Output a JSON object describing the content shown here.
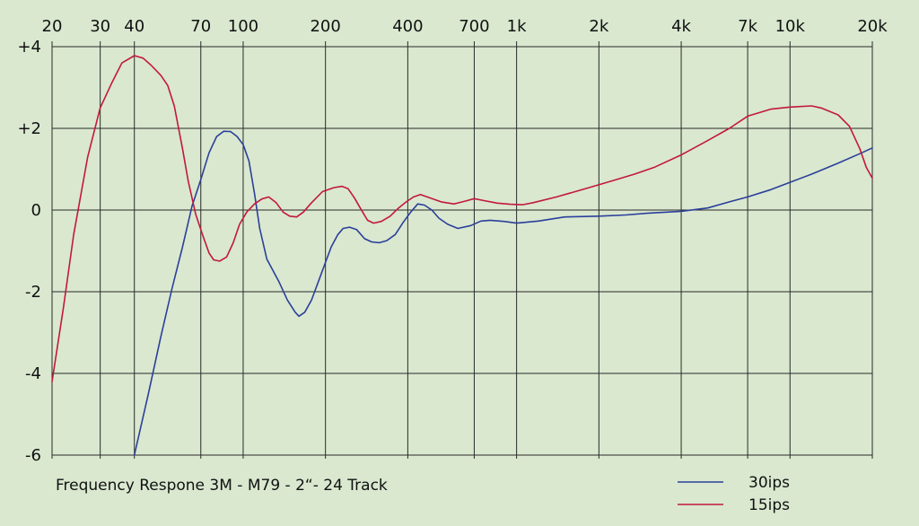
{
  "chart_data": {
    "type": "line",
    "title": "Frequency Respone 3M - M79 - 2“- 24 Track",
    "xlabel": "",
    "ylabel": "",
    "xscale": "log",
    "xlim": [
      20,
      20000
    ],
    "ylim": [
      -6,
      4
    ],
    "grid": true,
    "legend_position": "bottom-right",
    "background_color": "#d9e8cf",
    "grid_color": "#2a2a2a",
    "x_ticks": [
      {
        "value": 20,
        "label": "20"
      },
      {
        "value": 30,
        "label": "30"
      },
      {
        "value": 40,
        "label": "40"
      },
      {
        "value": 70,
        "label": "70"
      },
      {
        "value": 100,
        "label": "100"
      },
      {
        "value": 200,
        "label": "200"
      },
      {
        "value": 400,
        "label": "400"
      },
      {
        "value": 700,
        "label": "700"
      },
      {
        "value": 1000,
        "label": "1k"
      },
      {
        "value": 2000,
        "label": "2k"
      },
      {
        "value": 4000,
        "label": "4k"
      },
      {
        "value": 7000,
        "label": "7k"
      },
      {
        "value": 10000,
        "label": "10k"
      },
      {
        "value": 20000,
        "label": "20k"
      }
    ],
    "y_ticks": [
      {
        "value": 4,
        "label": "+4"
      },
      {
        "value": 2,
        "label": "+2"
      },
      {
        "value": 0,
        "label": "0"
      },
      {
        "value": -2,
        "label": "-2"
      },
      {
        "value": -4,
        "label": "-4"
      },
      {
        "value": -6,
        "label": "-6"
      }
    ],
    "series": [
      {
        "name": "30ips",
        "color": "#2b3f9a",
        "points": [
          [
            40,
            -6.0
          ],
          [
            45,
            -4.5
          ],
          [
            50,
            -3.1
          ],
          [
            55,
            -1.9
          ],
          [
            60,
            -0.9
          ],
          [
            65,
            0.1
          ],
          [
            70,
            0.75
          ],
          [
            75,
            1.4
          ],
          [
            80,
            1.8
          ],
          [
            85,
            1.93
          ],
          [
            90,
            1.92
          ],
          [
            95,
            1.8
          ],
          [
            100,
            1.6
          ],
          [
            105,
            1.2
          ],
          [
            110,
            0.4
          ],
          [
            115,
            -0.45
          ],
          [
            122,
            -1.2
          ],
          [
            135,
            -1.75
          ],
          [
            145,
            -2.2
          ],
          [
            155,
            -2.5
          ],
          [
            160,
            -2.6
          ],
          [
            168,
            -2.5
          ],
          [
            178,
            -2.2
          ],
          [
            192,
            -1.6
          ],
          [
            210,
            -0.9
          ],
          [
            222,
            -0.6
          ],
          [
            232,
            -0.45
          ],
          [
            245,
            -0.42
          ],
          [
            260,
            -0.48
          ],
          [
            278,
            -0.7
          ],
          [
            295,
            -0.78
          ],
          [
            315,
            -0.8
          ],
          [
            335,
            -0.75
          ],
          [
            360,
            -0.6
          ],
          [
            385,
            -0.3
          ],
          [
            410,
            -0.05
          ],
          [
            435,
            0.15
          ],
          [
            460,
            0.12
          ],
          [
            490,
            0.0
          ],
          [
            520,
            -0.2
          ],
          [
            560,
            -0.35
          ],
          [
            610,
            -0.45
          ],
          [
            680,
            -0.38
          ],
          [
            740,
            -0.27
          ],
          [
            800,
            -0.25
          ],
          [
            900,
            -0.28
          ],
          [
            1000,
            -0.32
          ],
          [
            1200,
            -0.27
          ],
          [
            1500,
            -0.17
          ],
          [
            2000,
            -0.15
          ],
          [
            2500,
            -0.12
          ],
          [
            3000,
            -0.08
          ],
          [
            4000,
            -0.03
          ],
          [
            5000,
            0.05
          ],
          [
            6000,
            0.2
          ],
          [
            7000,
            0.32
          ],
          [
            8500,
            0.5
          ],
          [
            10000,
            0.68
          ],
          [
            12000,
            0.88
          ],
          [
            15000,
            1.15
          ],
          [
            18000,
            1.38
          ],
          [
            20000,
            1.52
          ]
        ]
      },
      {
        "name": "15ips",
        "color": "#c3183c",
        "points": [
          [
            20,
            -4.2
          ],
          [
            22,
            -2.4
          ],
          [
            24,
            -0.6
          ],
          [
            27,
            1.3
          ],
          [
            30,
            2.5
          ],
          [
            33,
            3.1
          ],
          [
            36,
            3.6
          ],
          [
            40,
            3.78
          ],
          [
            43,
            3.72
          ],
          [
            46,
            3.55
          ],
          [
            50,
            3.3
          ],
          [
            53,
            3.05
          ],
          [
            56,
            2.55
          ],
          [
            60,
            1.5
          ],
          [
            63,
            0.7
          ],
          [
            67,
            -0.1
          ],
          [
            71,
            -0.6
          ],
          [
            75,
            -1.05
          ],
          [
            78,
            -1.22
          ],
          [
            82,
            -1.25
          ],
          [
            87,
            -1.15
          ],
          [
            92,
            -0.8
          ],
          [
            97,
            -0.35
          ],
          [
            103,
            -0.05
          ],
          [
            110,
            0.15
          ],
          [
            117,
            0.27
          ],
          [
            124,
            0.32
          ],
          [
            132,
            0.18
          ],
          [
            140,
            -0.05
          ],
          [
            148,
            -0.15
          ],
          [
            157,
            -0.17
          ],
          [
            166,
            -0.05
          ],
          [
            178,
            0.18
          ],
          [
            195,
            0.45
          ],
          [
            215,
            0.55
          ],
          [
            230,
            0.58
          ],
          [
            242,
            0.52
          ],
          [
            255,
            0.3
          ],
          [
            268,
            0.05
          ],
          [
            285,
            -0.25
          ],
          [
            300,
            -0.32
          ],
          [
            320,
            -0.28
          ],
          [
            345,
            -0.15
          ],
          [
            370,
            0.05
          ],
          [
            395,
            0.2
          ],
          [
            420,
            0.32
          ],
          [
            445,
            0.38
          ],
          [
            480,
            0.3
          ],
          [
            530,
            0.2
          ],
          [
            590,
            0.15
          ],
          [
            650,
            0.22
          ],
          [
            700,
            0.28
          ],
          [
            760,
            0.23
          ],
          [
            850,
            0.17
          ],
          [
            950,
            0.14
          ],
          [
            1050,
            0.13
          ],
          [
            1150,
            0.18
          ],
          [
            1400,
            0.32
          ],
          [
            1800,
            0.53
          ],
          [
            2200,
            0.7
          ],
          [
            2700,
            0.88
          ],
          [
            3200,
            1.05
          ],
          [
            4000,
            1.35
          ],
          [
            5000,
            1.7
          ],
          [
            6000,
            2.0
          ],
          [
            7000,
            2.3
          ],
          [
            8500,
            2.47
          ],
          [
            10000,
            2.52
          ],
          [
            12000,
            2.55
          ],
          [
            13000,
            2.5
          ],
          [
            15000,
            2.33
          ],
          [
            16500,
            2.05
          ],
          [
            18000,
            1.5
          ],
          [
            19000,
            1.05
          ],
          [
            20000,
            0.78
          ]
        ]
      }
    ]
  }
}
